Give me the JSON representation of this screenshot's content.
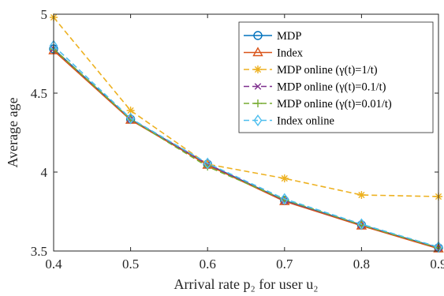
{
  "chart_data": {
    "type": "line",
    "xlabel": "Arrival rate p₂ for user u₂",
    "ylabel": "Average age",
    "xlim": [
      0.4,
      0.9
    ],
    "ylim": [
      3.5,
      5
    ],
    "x": [
      0.4,
      0.5,
      0.6,
      0.7,
      0.8,
      0.9
    ],
    "xticks": [
      "0.4",
      "0.5",
      "0.6",
      "0.7",
      "0.8",
      "0.9"
    ],
    "yticks": [
      "3.5",
      "4",
      "4.5",
      "5"
    ],
    "legend_position": "top-right",
    "series": [
      {
        "name": "MDP",
        "color": "#0072BD",
        "marker": "circle",
        "dash": "solid",
        "values": [
          4.78,
          4.335,
          4.05,
          3.82,
          3.665,
          3.52
        ]
      },
      {
        "name": "Index",
        "color": "#D95319",
        "marker": "triangle",
        "dash": "solid",
        "values": [
          4.77,
          4.33,
          4.045,
          3.815,
          3.66,
          3.515
        ]
      },
      {
        "name": "MDP online (γ(t)=1/t)",
        "color": "#EDB120",
        "marker": "asterisk",
        "dash": "dashed",
        "values": [
          4.98,
          4.39,
          4.05,
          3.96,
          3.855,
          3.845
        ]
      },
      {
        "name": "MDP online (γ(t)=0.1/t)",
        "color": "#7E2F8E",
        "marker": "x",
        "dash": "dashed",
        "values": [
          4.78,
          4.335,
          4.05,
          3.82,
          3.665,
          3.52
        ]
      },
      {
        "name": "MDP online (γ(t)=0.01/t)",
        "color": "#77AC30",
        "marker": "plus",
        "dash": "dashed",
        "values": [
          4.78,
          4.335,
          4.035,
          3.825,
          3.665,
          3.52
        ]
      },
      {
        "name": "Index online",
        "color": "#4DBEEE",
        "marker": "diamond",
        "dash": "dashed",
        "values": [
          4.8,
          4.34,
          4.055,
          3.83,
          3.67,
          3.525
        ]
      }
    ]
  }
}
